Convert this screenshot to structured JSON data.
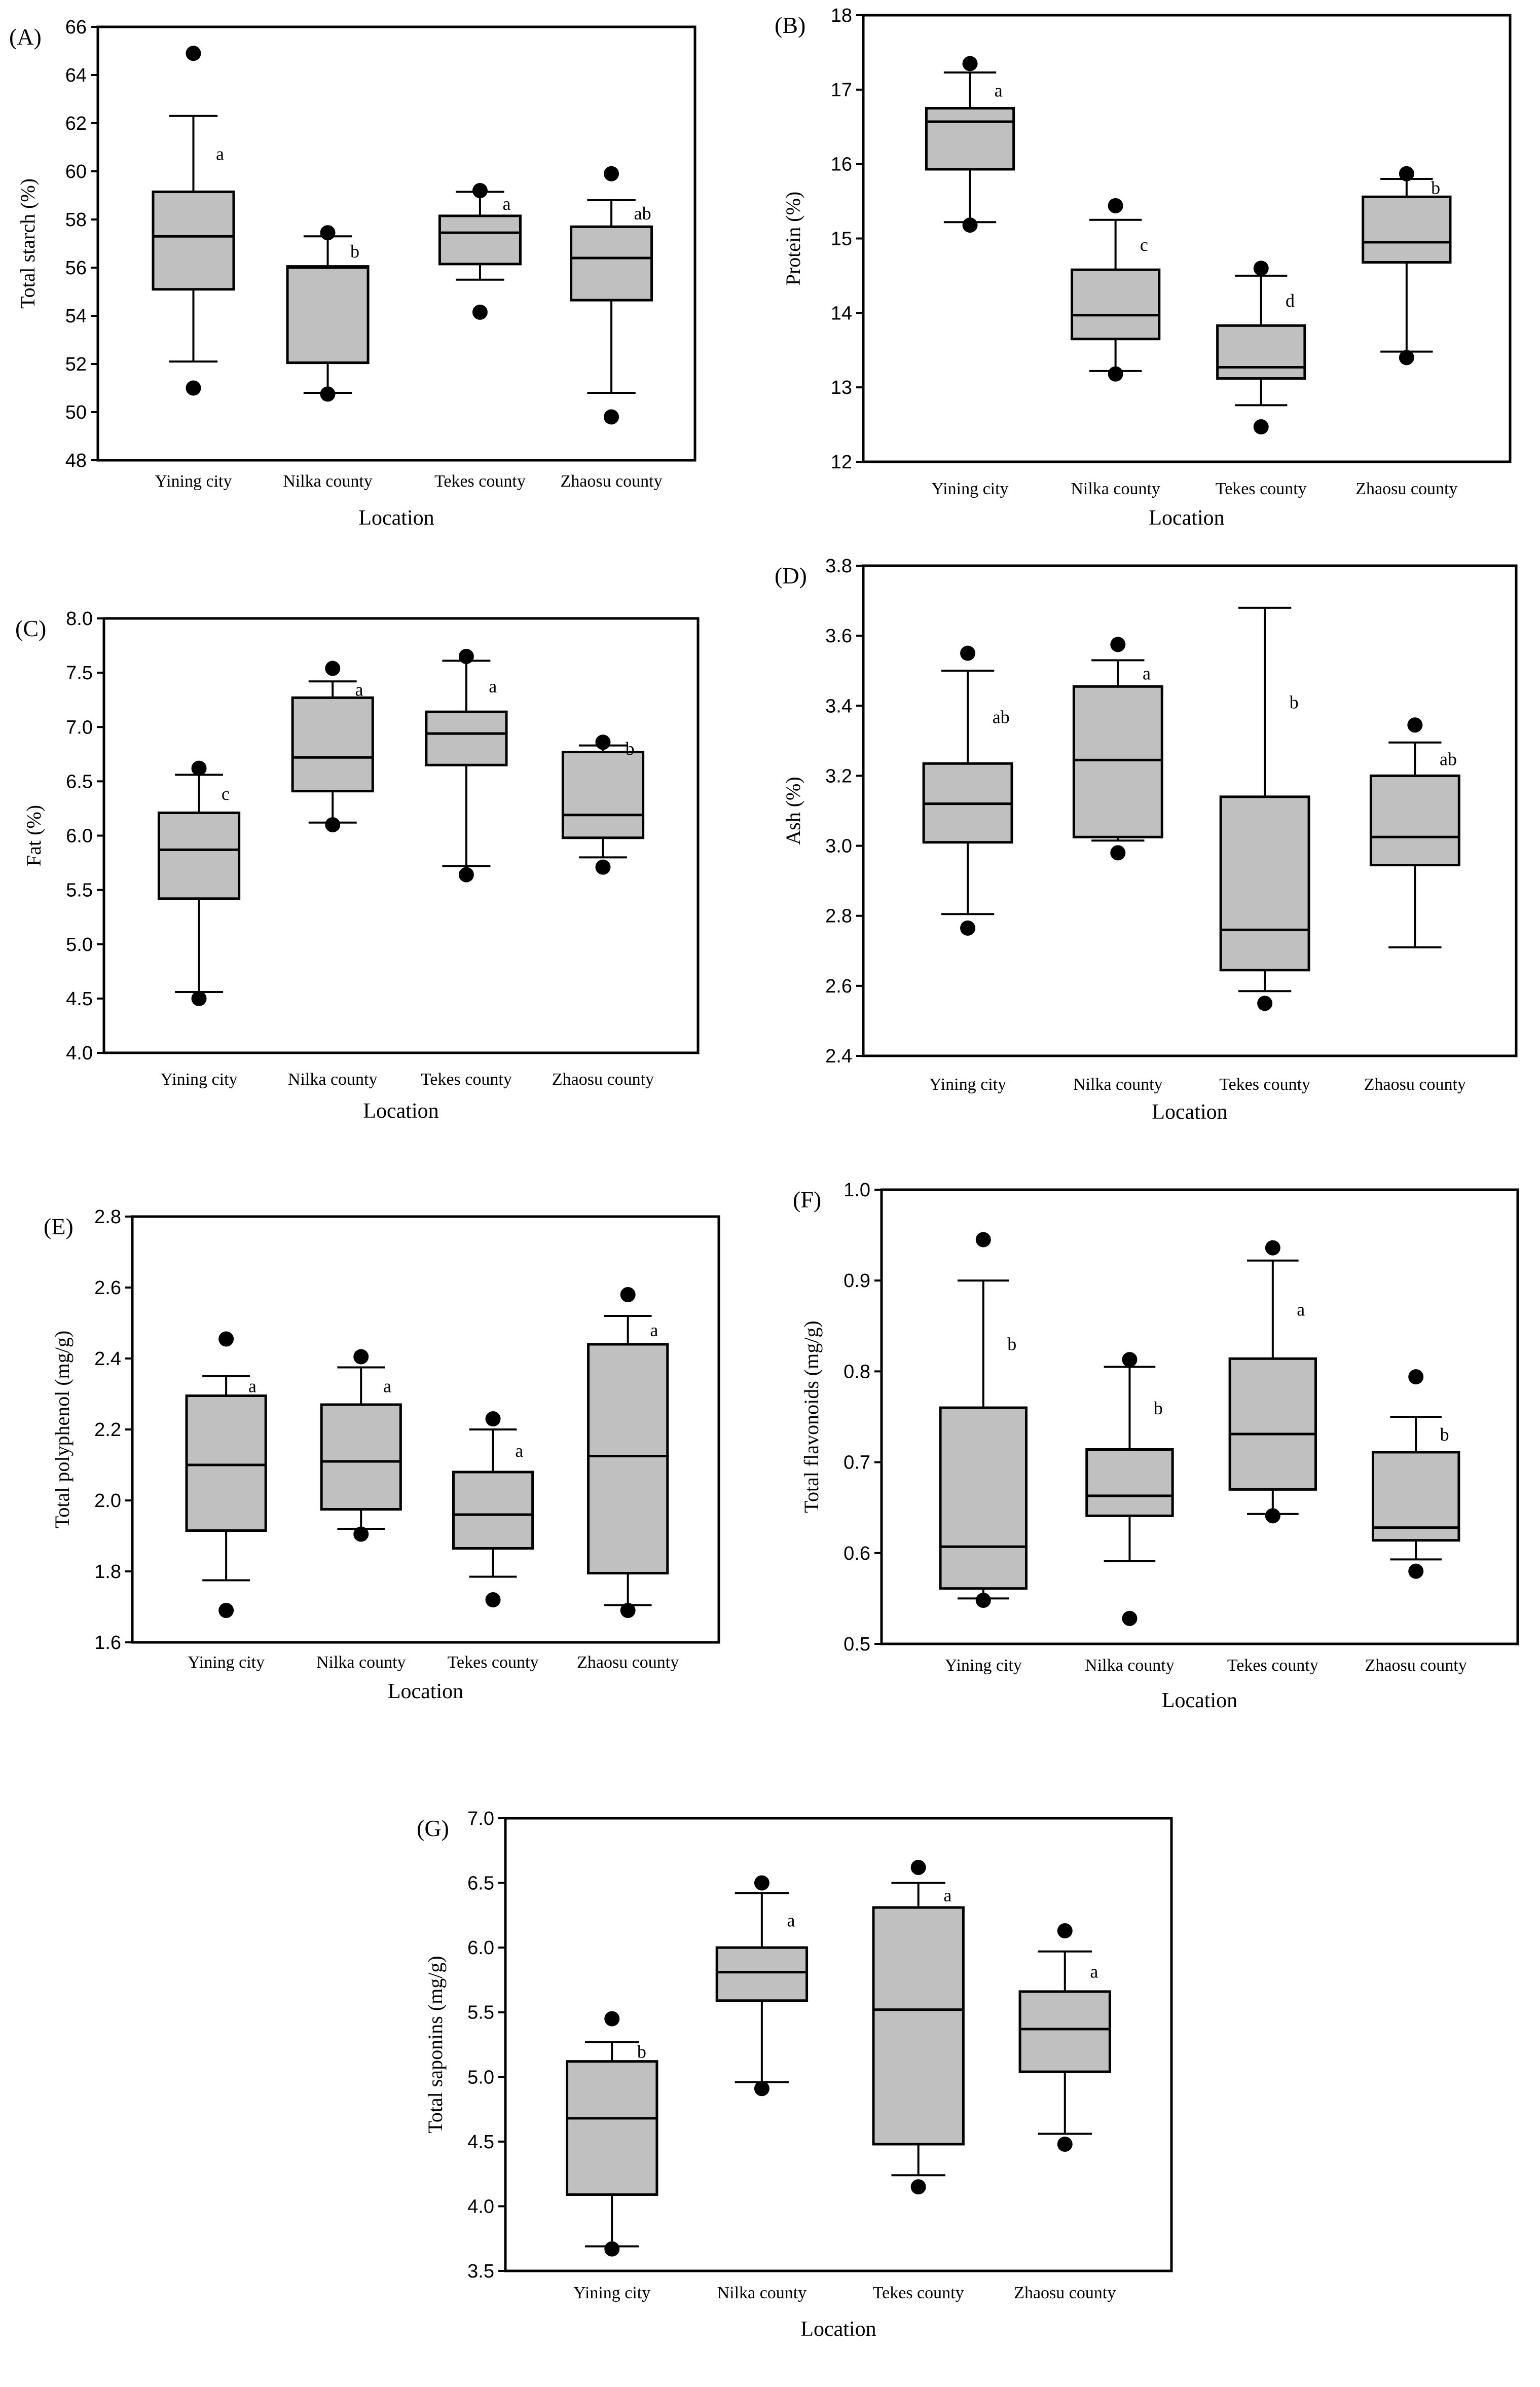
{
  "colors": {
    "box_fill": "#c0c0c0",
    "stroke": "#000000",
    "outlier": "#000000",
    "background": "#ffffff"
  },
  "chart_data": [
    {
      "panel": "(A)",
      "type": "box",
      "xlabel": "Location",
      "ylabel": "Total starch (%)",
      "ylim": [
        48,
        66
      ],
      "yticks": [
        "48",
        "50",
        "52",
        "54",
        "56",
        "58",
        "60",
        "62",
        "64",
        "66"
      ],
      "categories": [
        "Yining city",
        "Nilka county",
        "Tekes county",
        "Zhaosu county"
      ],
      "boxes": [
        {
          "whisker_low": 52.1,
          "q1": 55.1,
          "median": 57.3,
          "q3": 59.15,
          "whisker_high": 62.3,
          "outliers": [
            64.9,
            51.0
          ],
          "letter": "a"
        },
        {
          "whisker_low": 50.8,
          "q1": 52.05,
          "median": 56.0,
          "q3": 56.05,
          "whisker_high": 57.3,
          "outliers": [
            57.45,
            50.75
          ],
          "letter": "b"
        },
        {
          "whisker_low": 55.5,
          "q1": 56.15,
          "median": 57.45,
          "q3": 58.15,
          "whisker_high": 59.15,
          "outliers": [
            59.2,
            54.15
          ],
          "letter": "a"
        },
        {
          "whisker_low": 50.8,
          "q1": 54.65,
          "median": 56.4,
          "q3": 57.7,
          "whisker_high": 58.8,
          "outliers": [
            59.9,
            49.8
          ],
          "letter": "ab"
        }
      ]
    },
    {
      "panel": "(B)",
      "type": "box",
      "xlabel": "Location",
      "ylabel": "Protein (%)",
      "ylim": [
        12,
        18
      ],
      "yticks": [
        "12",
        "13",
        "14",
        "15",
        "16",
        "17",
        "18"
      ],
      "categories": [
        "Yining city",
        "Nilka county",
        "Tekes county",
        "Zhaosu county"
      ],
      "boxes": [
        {
          "whisker_low": 15.22,
          "q1": 15.93,
          "median": 16.57,
          "q3": 16.75,
          "whisker_high": 17.23,
          "outliers": [
            17.35,
            15.18
          ],
          "letter": "a"
        },
        {
          "whisker_low": 13.22,
          "q1": 13.65,
          "median": 13.97,
          "q3": 14.58,
          "whisker_high": 15.25,
          "outliers": [
            15.44,
            13.18
          ],
          "letter": "c"
        },
        {
          "whisker_low": 12.76,
          "q1": 13.12,
          "median": 13.27,
          "q3": 13.83,
          "whisker_high": 14.5,
          "outliers": [
            14.6,
            12.47
          ],
          "letter": "d"
        },
        {
          "whisker_low": 13.48,
          "q1": 14.68,
          "median": 14.95,
          "q3": 15.56,
          "whisker_high": 15.8,
          "outliers": [
            15.87,
            13.4
          ],
          "letter": "b"
        }
      ]
    },
    {
      "panel": "(C)",
      "type": "box",
      "xlabel": "Location",
      "ylabel": "Fat (%)",
      "ylim": [
        4.0,
        8.0
      ],
      "yticks": [
        "4.0",
        "4.5",
        "5.0",
        "5.5",
        "6.0",
        "6.5",
        "7.0",
        "7.5",
        "8.0"
      ],
      "categories": [
        "Yining city",
        "Nilka county",
        "Tekes county",
        "Zhaosu county"
      ],
      "boxes": [
        {
          "whisker_low": 4.56,
          "q1": 5.42,
          "median": 5.87,
          "q3": 6.21,
          "whisker_high": 6.56,
          "outliers": [
            6.62,
            4.5
          ],
          "letter": "c"
        },
        {
          "whisker_low": 6.12,
          "q1": 6.41,
          "median": 6.72,
          "q3": 7.27,
          "whisker_high": 7.42,
          "outliers": [
            7.54,
            6.1
          ],
          "letter": "a"
        },
        {
          "whisker_low": 5.72,
          "q1": 6.65,
          "median": 6.94,
          "q3": 7.14,
          "whisker_high": 7.61,
          "outliers": [
            7.65,
            5.64
          ],
          "letter": "a"
        },
        {
          "whisker_low": 5.8,
          "q1": 5.98,
          "median": 6.19,
          "q3": 6.77,
          "whisker_high": 6.83,
          "outliers": [
            6.86,
            5.71
          ],
          "letter": "b"
        }
      ]
    },
    {
      "panel": "(D)",
      "type": "box",
      "xlabel": "Location",
      "ylabel": "Ash (%)",
      "ylim": [
        2.4,
        3.8
      ],
      "yticks": [
        "2.4",
        "2.6",
        "2.8",
        "3.0",
        "3.2",
        "3.4",
        "3.6",
        "3.8"
      ],
      "categories": [
        "Yining city",
        "Nilka county",
        "Tekes county",
        "Zhaosu county"
      ],
      "boxes": [
        {
          "whisker_low": 2.805,
          "q1": 3.01,
          "median": 3.12,
          "q3": 3.235,
          "whisker_high": 3.5,
          "outliers": [
            3.55,
            2.765
          ],
          "letter": "ab"
        },
        {
          "whisker_low": 3.015,
          "q1": 3.025,
          "median": 3.245,
          "q3": 3.455,
          "whisker_high": 3.53,
          "outliers": [
            3.575,
            2.98
          ],
          "letter": "a"
        },
        {
          "whisker_low": 2.585,
          "q1": 2.645,
          "median": 2.76,
          "q3": 3.14,
          "whisker_high": 3.68,
          "outliers": [
            2.55
          ],
          "letter": "b"
        },
        {
          "whisker_low": 2.71,
          "q1": 2.945,
          "median": 3.025,
          "q3": 3.2,
          "whisker_high": 3.295,
          "outliers": [
            3.345
          ],
          "letter": "ab"
        }
      ]
    },
    {
      "panel": "(E)",
      "type": "box",
      "xlabel": "Location",
      "ylabel": "Total polyphenol  (mg/g)",
      "ylim": [
        1.6,
        2.8
      ],
      "yticks": [
        "1.6",
        "1.8",
        "2.0",
        "2.2",
        "2.4",
        "2.6",
        "2.8"
      ],
      "categories": [
        "Yining city",
        "Nilka county",
        "Tekes county",
        "Zhaosu county"
      ],
      "boxes": [
        {
          "whisker_low": 1.775,
          "q1": 1.915,
          "median": 2.1,
          "q3": 2.295,
          "whisker_high": 2.35,
          "outliers": [
            2.455,
            1.69
          ],
          "letter": "a"
        },
        {
          "whisker_low": 1.92,
          "q1": 1.975,
          "median": 2.11,
          "q3": 2.27,
          "whisker_high": 2.375,
          "outliers": [
            2.405,
            1.905
          ],
          "letter": "a"
        },
        {
          "whisker_low": 1.785,
          "q1": 1.865,
          "median": 1.96,
          "q3": 2.08,
          "whisker_high": 2.2,
          "outliers": [
            2.23,
            1.72
          ],
          "letter": "a"
        },
        {
          "whisker_low": 1.705,
          "q1": 1.795,
          "median": 2.125,
          "q3": 2.44,
          "whisker_high": 2.52,
          "outliers": [
            2.58,
            1.69
          ],
          "letter": "a"
        }
      ]
    },
    {
      "panel": "(F)",
      "type": "box",
      "xlabel": "Location",
      "ylabel": "Total flavonoids (mg/g)",
      "ylim": [
        0.5,
        1.0
      ],
      "yticks": [
        "0.5",
        "0.6",
        "0.7",
        "0.8",
        "0.9",
        "1.0"
      ],
      "categories": [
        "Yining city",
        "Nilka county",
        "Tekes county",
        "Zhaosu county"
      ],
      "boxes": [
        {
          "whisker_low": 0.55,
          "q1": 0.561,
          "median": 0.607,
          "q3": 0.76,
          "whisker_high": 0.9,
          "outliers": [
            0.945,
            0.548
          ],
          "letter": "b"
        },
        {
          "whisker_low": 0.591,
          "q1": 0.641,
          "median": 0.663,
          "q3": 0.714,
          "whisker_high": 0.805,
          "outliers": [
            0.813,
            0.528
          ],
          "letter": "b"
        },
        {
          "whisker_low": 0.643,
          "q1": 0.67,
          "median": 0.731,
          "q3": 0.814,
          "whisker_high": 0.922,
          "outliers": [
            0.936,
            0.641
          ],
          "letter": "a"
        },
        {
          "whisker_low": 0.593,
          "q1": 0.614,
          "median": 0.628,
          "q3": 0.711,
          "whisker_high": 0.75,
          "outliers": [
            0.794,
            0.58
          ],
          "letter": "b"
        }
      ]
    },
    {
      "panel": "(G)",
      "type": "box",
      "xlabel": "Location",
      "ylabel": "Total saponins (mg/g)",
      "ylim": [
        3.5,
        7.0
      ],
      "yticks": [
        "3.5",
        "4.0",
        "4.5",
        "5.0",
        "5.5",
        "6.0",
        "6.5",
        "7.0"
      ],
      "categories": [
        "Yining city",
        "Nilka county",
        "Tekes county",
        "Zhaosu county"
      ],
      "boxes": [
        {
          "whisker_low": 3.69,
          "q1": 4.09,
          "median": 4.68,
          "q3": 5.12,
          "whisker_high": 5.27,
          "outliers": [
            5.45,
            3.67
          ],
          "letter": "b"
        },
        {
          "whisker_low": 4.96,
          "q1": 5.59,
          "median": 5.81,
          "q3": 6.0,
          "whisker_high": 6.42,
          "outliers": [
            6.5,
            4.91
          ],
          "letter": "a"
        },
        {
          "whisker_low": 4.24,
          "q1": 4.48,
          "median": 5.52,
          "q3": 6.31,
          "whisker_high": 6.5,
          "outliers": [
            6.62,
            4.15
          ],
          "letter": "a"
        },
        {
          "whisker_low": 4.56,
          "q1": 5.04,
          "median": 5.37,
          "q3": 5.66,
          "whisker_high": 5.97,
          "outliers": [
            6.13,
            4.48
          ],
          "letter": "a"
        }
      ]
    }
  ]
}
